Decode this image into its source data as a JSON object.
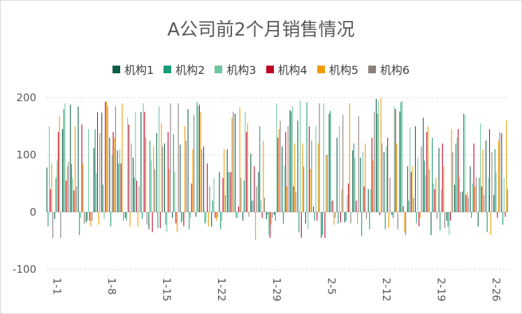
{
  "chart_data": {
    "type": "bar",
    "title": "A公司前2个月销售情况",
    "ylim": [
      -100,
      200
    ],
    "yticks": [
      -100,
      0,
      100,
      200
    ],
    "grid": true,
    "legend_position": "top",
    "x_tick_labels": [
      "1-1",
      "1-8",
      "1-15",
      "1-22",
      "1-29",
      "2-5",
      "2-12",
      "2-19",
      "2-26"
    ],
    "categories": [
      "1-1",
      "1-2",
      "1-3",
      "1-4",
      "1-5",
      "1-6",
      "1-7",
      "1-8",
      "1-9",
      "1-10",
      "1-11",
      "1-12",
      "1-13",
      "1-14",
      "1-15",
      "1-16",
      "1-17",
      "1-18",
      "1-19",
      "1-20",
      "1-21",
      "1-22",
      "1-23",
      "1-24",
      "1-25",
      "1-26",
      "1-27",
      "1-28",
      "1-29",
      "1-30",
      "1-31",
      "2-1",
      "2-2",
      "2-3",
      "2-4",
      "2-5",
      "2-6",
      "2-7",
      "2-8",
      "2-9",
      "2-10",
      "2-11",
      "2-12",
      "2-13",
      "2-14",
      "2-15",
      "2-16",
      "2-17",
      "2-18",
      "2-19",
      "2-20",
      "2-21",
      "2-22",
      "2-23",
      "2-24",
      "2-25",
      "2-26",
      "2-27",
      "2-28"
    ],
    "series": [
      {
        "name": "机构1",
        "color": "#0b5c45",
        "values": [
          78,
          -12,
          145,
          188,
          185,
          -18,
          112,
          174,
          130,
          108,
          -10,
          95,
          175,
          -30,
          138,
          120,
          -10,
          118,
          180,
          -8,
          115,
          -25,
          70,
          110,
          172,
          -15,
          102,
          70,
          -12,
          -5,
          115,
          178,
          160,
          -20,
          10,
          -45,
          172,
          130,
          -18,
          108,
          95,
          40,
          198,
          105,
          -5,
          176,
          80,
          150,
          165,
          -40,
          112,
          -15,
          48,
          36,
          80,
          -25,
          125,
          30,
          138
        ]
      },
      {
        "name": "机构2",
        "color": "#1a9b76",
        "values": [
          -25,
          60,
          180,
          84,
          -40,
          -15,
          145,
          48,
          -25,
          85,
          -15,
          60,
          -12,
          125,
          -28,
          -22,
          136,
          -18,
          -30,
          192,
          -20,
          20,
          -30,
          70,
          -10,
          55,
          20,
          150,
          -5,
          -15,
          -20,
          176,
          -35,
          192,
          -15,
          -40,
          177,
          -20,
          -15,
          120,
          -42,
          -30,
          172,
          -30,
          -10,
          192,
          20,
          -20,
          90,
          130,
          -32,
          -25,
          120,
          172,
          -10,
          60,
          -35,
          110,
          -22
        ]
      },
      {
        "name": "机构3",
        "color": "#6fc6a0",
        "values": [
          150,
          90,
          190,
          60,
          -10,
          145,
          68,
          -12,
          100,
          110,
          165,
          175,
          190,
          90,
          185,
          -35,
          70,
          -15,
          -10,
          185,
          -18,
          60,
          -15,
          70,
          -10,
          175,
          20,
          20,
          -40,
          190,
          80,
          185,
          195,
          -30,
          150,
          190,
          20,
          150,
          30,
          95,
          105,
          40,
          195,
          115,
          185,
          195,
          148,
          95,
          65,
          50,
          40,
          -40,
          130,
          170,
          50,
          155,
          60,
          70,
          60
        ]
      },
      {
        "name": "机构4",
        "color": "#c00020",
        "values": [
          40,
          140,
          55,
          38,
          153,
          -15,
          175,
          193,
          140,
          85,
          153,
          55,
          175,
          -35,
          -28,
          140,
          -20,
          -25,
          50,
          188,
          85,
          -10,
          60,
          70,
          10,
          140,
          80,
          -10,
          -45,
          130,
          140,
          45,
          -45,
          150,
          -15,
          -45,
          20,
          -18,
          50,
          20,
          45,
          130,
          -5,
          130,
          180,
          10,
          70,
          -25,
          140,
          40,
          120,
          -15,
          145,
          30,
          120,
          45,
          145,
          -10,
          -8
        ]
      },
      {
        "name": "机构5",
        "color": "#f09800",
        "values": [
          85,
          168,
          80,
          150,
          85,
          -25,
          -22,
          193,
          130,
          190,
          -25,
          -25,
          130,
          115,
          155,
          75,
          -35,
          150,
          110,
          175,
          -25,
          -15,
          110,
          165,
          183,
          155,
          -48,
          125,
          -22,
          145,
          45,
          120,
          120,
          75,
          120,
          100,
          -22,
          40,
          190,
          -20,
          120,
          90,
          200,
          -28,
          120,
          -35,
          80,
          -10,
          150,
          60,
          80,
          145,
          60,
          35,
          45,
          110,
          -40,
          125,
          160
        ]
      },
      {
        "name": "机构6",
        "color": "#8a7f79",
        "values": [
          -45,
          -45,
          88,
          45,
          -20,
          -15,
          138,
          185,
          185,
          -15,
          120,
          45,
          -22,
          75,
          115,
          190,
          190,
          125,
          170,
          110,
          45,
          -10,
          30,
          175,
          60,
          -8,
          45,
          25,
          -10,
          160,
          150,
          35,
          80,
          125,
          190,
          100,
          -10,
          170,
          -20,
          168,
          -12,
          175,
          120,
          60,
          -30,
          -40,
          25,
          115,
          75,
          -12,
          -28,
          105,
          35,
          25,
          60,
          30,
          105,
          140,
          40
        ]
      }
    ]
  }
}
